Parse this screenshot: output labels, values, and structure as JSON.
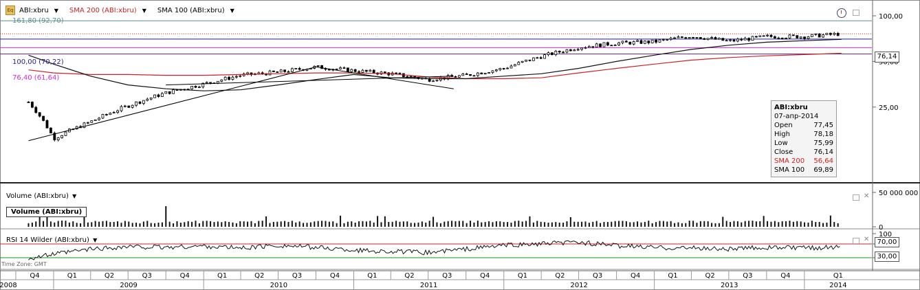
{
  "legend": {
    "eq_icon": "Eq",
    "symbol": "ABI:xbru",
    "sma200": "SMA 200 (ABI:xbru)",
    "sma100": "SMA 100 (ABI:xbru)"
  },
  "fib_levels": [
    {
      "label": "161,80 (92,70)",
      "value": 92.7,
      "color": "#5b8f8f"
    },
    {
      "label": "100,00 (70,22)",
      "value": 70.22,
      "color": "#1d1d8f"
    },
    {
      "label": "76,40 (61,64)",
      "value": 61.64,
      "color": "#d12bd1"
    },
    {
      "label": "",
      "value": 56.0,
      "color": "#6a2b8f"
    }
  ],
  "last_price_label": "76,14",
  "tooltip": {
    "symbol": "ABI:xbru",
    "date": "07-апр-2014",
    "rows": [
      {
        "label": "Open",
        "value": "77,45",
        "color": "#000000"
      },
      {
        "label": "High",
        "value": "78,18",
        "color": "#000000"
      },
      {
        "label": "Low",
        "value": "75,99",
        "color": "#000000"
      },
      {
        "label": "Close",
        "value": "76,14",
        "color": "#000000"
      },
      {
        "label": "SMA 200",
        "value": "56,64",
        "color": "#cc2222"
      },
      {
        "label": "SMA 100",
        "value": "69,89",
        "color": "#000000"
      }
    ]
  },
  "volume_pane": {
    "label": "Volume (ABI:xbru)",
    "box_label": "Volume (ABI:xbru)",
    "axis_label": "50 000 000",
    "axis_zero": "0"
  },
  "rsi_pane": {
    "label": "RSI 14 Wilder (ABI:xbru)",
    "axis": [
      "100",
      "70,00",
      "30,00"
    ],
    "overbought": 70,
    "oversold": 30
  },
  "timezone": "Time Zone: GMT",
  "colors": {
    "sma200": "#cc2222",
    "sma100": "#111111",
    "rsi_high": "#cc2222",
    "rsi_low": "#1a8f1a",
    "last_price_line": "#cc2222"
  },
  "chart_data": [
    {
      "type": "candlestick",
      "title": "ABI:xbru",
      "y_ticks": [
        {
          "value": 25,
          "label": "25,00"
        },
        {
          "value": 50,
          "label": "50,00"
        },
        {
          "value": 100,
          "label": "100,00"
        }
      ],
      "ylim": [
        8,
        100
      ],
      "dates": [
        "2008-11",
        "2009-01",
        "2009-04",
        "2009-07",
        "2009-10",
        "2010-01",
        "2010-04",
        "2010-07",
        "2010-10",
        "2011-01",
        "2011-04",
        "2011-07",
        "2011-10",
        "2012-01",
        "2012-04",
        "2012-07",
        "2012-10",
        "2013-01",
        "2013-04",
        "2013-07",
        "2013-10",
        "2014-01",
        "2014-04"
      ],
      "close": [
        27.0,
        15.5,
        20.0,
        25.5,
        31.0,
        35.5,
        40.5,
        42.5,
        46.0,
        43.5,
        41.5,
        38.0,
        40.5,
        45.0,
        54.0,
        62.0,
        66.0,
        67.5,
        73.5,
        68.0,
        73.0,
        73.0,
        76.14
      ],
      "series": [
        {
          "name": "SMA 200",
          "values": [
            44,
            42,
            41,
            41,
            40.5,
            40.5,
            41,
            41.5,
            42,
            42,
            41.5,
            39.5,
            38.5,
            38.5,
            39,
            42,
            45,
            48,
            51,
            53,
            54.5,
            55.5,
            56.64
          ]
        },
        {
          "name": "SMA 100",
          "values": [
            55,
            48,
            40,
            35,
            33,
            32,
            32.5,
            35,
            38,
            41,
            39,
            38.5,
            38.5,
            40,
            41.5,
            45,
            50,
            55,
            60,
            64,
            67,
            68.5,
            69.89
          ]
        }
      ]
    },
    {
      "type": "bar",
      "title": "Volume (ABI:xbru)",
      "y_ticks": [
        {
          "value": 50000000,
          "label": "50 000 000"
        },
        {
          "value": 0,
          "label": "0"
        }
      ],
      "ylim": [
        0,
        55000000
      ]
    },
    {
      "type": "line",
      "title": "RSI 14 Wilder (ABI:xbru)",
      "ylim": [
        0,
        100
      ],
      "y_ticks": [
        {
          "value": 100,
          "label": "100"
        },
        {
          "value": 70,
          "label": "70,00"
        },
        {
          "value": 30,
          "label": "30,00"
        }
      ],
      "values": [
        28,
        40,
        55,
        62,
        60,
        64,
        58,
        66,
        60,
        52,
        48,
        45,
        55,
        66,
        70,
        75,
        65,
        60,
        58,
        55,
        60,
        58,
        62
      ]
    }
  ],
  "x_axis": {
    "quarters": [
      "Q4",
      "Q1",
      "Q2",
      "Q3",
      "Q4",
      "Q1",
      "Q2",
      "Q3",
      "Q4",
      "Q1",
      "Q2",
      "Q3",
      "Q4",
      "Q1",
      "Q2",
      "Q3",
      "Q4",
      "Q1",
      "Q2",
      "Q3",
      "Q4",
      "Q1"
    ],
    "years": [
      "2008",
      "2009",
      "2010",
      "2011",
      "2012",
      "2013",
      "2014"
    ]
  }
}
